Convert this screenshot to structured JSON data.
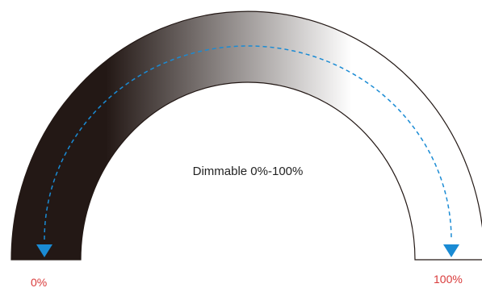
{
  "diagram": {
    "center_label": "Dimmable 0%-100%",
    "min_label": "0%",
    "max_label": "100%",
    "colors": {
      "gradient_dark": "#231815",
      "gradient_light": "#ffffff",
      "outline": "#231815",
      "arrow_path": "#1a8bd4",
      "label_red": "#d93a3a",
      "center_text": "#222222"
    },
    "icons": [
      "arrow-down-icon",
      "arrow-down-icon"
    ]
  }
}
